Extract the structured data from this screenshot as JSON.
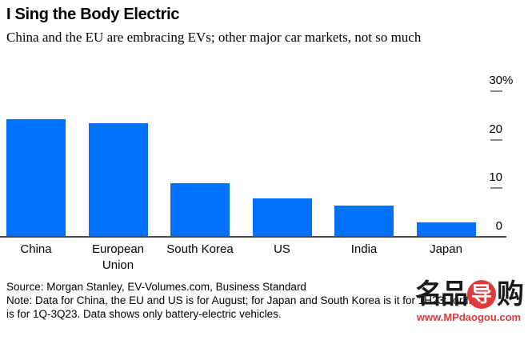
{
  "header": {
    "title": "I Sing the Body Electric",
    "subtitle": "China and the EU are embracing EVs; other major car markets, not so much"
  },
  "chart_data": {
    "type": "bar",
    "title": "I Sing the Body Electric",
    "subtitle": "China and the EU are embracing EVs; other major car markets, not so much",
    "categories": [
      "China",
      "European Union",
      "South Korea",
      "US",
      "India",
      "Japan"
    ],
    "values": [
      24.2,
      23.5,
      11,
      8,
      6.5,
      2.9
    ],
    "xlabel": "",
    "ylabel": "",
    "ylim": [
      0,
      30
    ],
    "yticks": [
      {
        "value": 30,
        "label": "30",
        "suffix": "%"
      },
      {
        "value": 20,
        "label": "20",
        "suffix": ""
      },
      {
        "value": 10,
        "label": "10",
        "suffix": ""
      },
      {
        "value": 0,
        "label": "0",
        "suffix": ""
      }
    ],
    "axis_side": "right",
    "grid": false,
    "legend": false,
    "bar_color": "#0071f8"
  },
  "footer": {
    "source": "Source: Morgan Stanley, EV-Volumes.com, Business Standard",
    "note_line1": "Note: Data for China, the EU and US is for August; for Japan and South Korea is it for 1H23; for India",
    "note_line2": "is for 1Q-3Q23. Data shows only battery-electric vehicles."
  },
  "watermark": {
    "logo_left": "名品",
    "logo_circle": "导",
    "logo_right": "购",
    "url": "www.MPdaogou.com",
    "red": "#e03a3a"
  },
  "colors": {
    "bar": "#0071f8",
    "axis_line": "#4a4a4a",
    "tick": "#8a8a8a",
    "text": "#000000"
  }
}
